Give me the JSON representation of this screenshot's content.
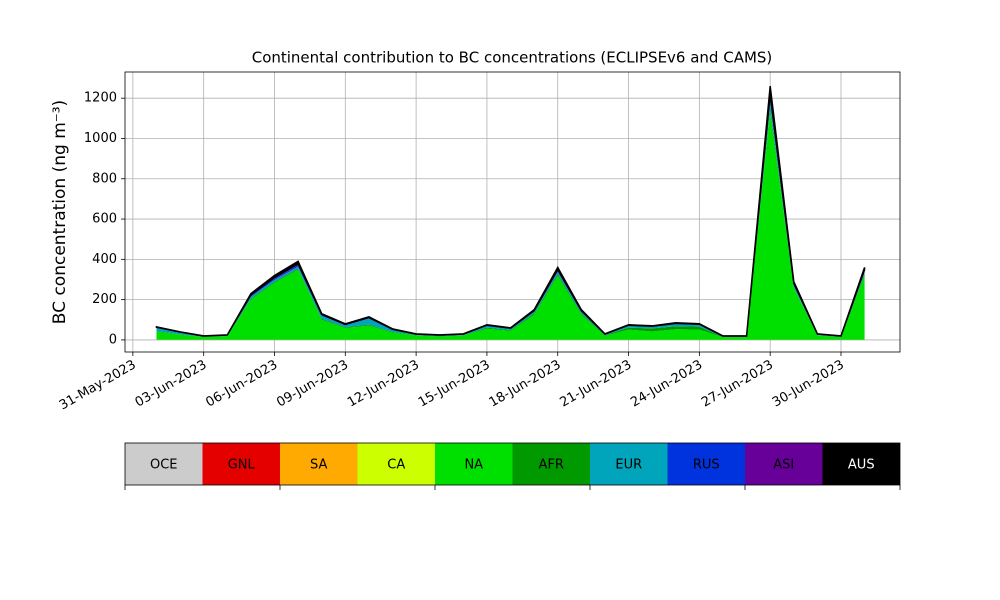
{
  "chart_data": {
    "type": "stacked_area",
    "title": "Continental contribution to BC concentrations (ECLIPSEv6 and CAMS)",
    "y_label": "BC concentration (ng m⁻³)",
    "x": [
      "2023-06-01",
      "2023-06-02",
      "2023-06-03",
      "2023-06-04",
      "2023-06-05",
      "2023-06-06",
      "2023-06-07",
      "2023-06-08",
      "2023-06-09",
      "2023-06-10",
      "2023-06-11",
      "2023-06-12",
      "2023-06-13",
      "2023-06-14",
      "2023-06-15",
      "2023-06-16",
      "2023-06-17",
      "2023-06-18",
      "2023-06-19",
      "2023-06-20",
      "2023-06-21",
      "2023-06-22",
      "2023-06-23",
      "2023-06-24",
      "2023-06-25",
      "2023-06-26",
      "2023-06-27",
      "2023-06-28",
      "2023-06-29",
      "2023-06-30",
      "2023-07-01"
    ],
    "xlim": [
      "2023-05-30T16:00:00Z",
      "2023-07-02T12:00:00Z"
    ],
    "xticks": [
      {
        "value": "2023-05-31",
        "label": "31-May-2023"
      },
      {
        "value": "2023-06-03",
        "label": "03-Jun-2023"
      },
      {
        "value": "2023-06-06",
        "label": "06-Jun-2023"
      },
      {
        "value": "2023-06-09",
        "label": "09-Jun-2023"
      },
      {
        "value": "2023-06-12",
        "label": "12-Jun-2023"
      },
      {
        "value": "2023-06-15",
        "label": "15-Jun-2023"
      },
      {
        "value": "2023-06-18",
        "label": "18-Jun-2023"
      },
      {
        "value": "2023-06-21",
        "label": "21-Jun-2023"
      },
      {
        "value": "2023-06-24",
        "label": "24-Jun-2023"
      },
      {
        "value": "2023-06-27",
        "label": "27-Jun-2023"
      },
      {
        "value": "2023-06-30",
        "label": "30-Jun-2023"
      }
    ],
    "ylim": [
      -60,
      1330
    ],
    "yticks": [
      0,
      200,
      400,
      600,
      800,
      1000,
      1200
    ],
    "grid": true,
    "series": [
      {
        "name": "OCE",
        "color": "#cccccc",
        "values": [
          0,
          0,
          0,
          0,
          0,
          0,
          0,
          0,
          0,
          0,
          0,
          0,
          0,
          0,
          0,
          0,
          0,
          0,
          0,
          0,
          0,
          0,
          0,
          0,
          0,
          0,
          0,
          0,
          0,
          0,
          0
        ]
      },
      {
        "name": "GNL",
        "color": "#e50000",
        "values": [
          0,
          0,
          0,
          0,
          0,
          0,
          0,
          0,
          0,
          0,
          0,
          0,
          0,
          0,
          0,
          0,
          0,
          0,
          0,
          0,
          0,
          0,
          0,
          0,
          0,
          0,
          0,
          0,
          0,
          0,
          0
        ]
      },
      {
        "name": "SA",
        "color": "#ffaa00",
        "values": [
          0,
          0,
          0,
          0,
          0,
          0,
          0,
          0,
          0,
          0,
          0,
          0,
          0,
          0,
          0,
          0,
          0,
          0,
          0,
          0,
          0,
          0,
          0,
          0,
          0,
          0,
          0,
          0,
          0,
          0,
          0
        ]
      },
      {
        "name": "CA",
        "color": "#ccff00",
        "values": [
          1,
          1,
          1,
          1,
          1,
          1,
          1,
          1,
          1,
          1,
          1,
          1,
          1,
          1,
          1,
          1,
          1,
          1,
          1,
          1,
          1,
          1,
          1,
          1,
          1,
          1,
          1,
          1,
          1,
          1,
          1
        ]
      },
      {
        "name": "NA",
        "color": "#00e000",
        "values": [
          40,
          25,
          13,
          18,
          199,
          282,
          348,
          99,
          58,
          70,
          36,
          21,
          16,
          21,
          55,
          44,
          124,
          318,
          124,
          19,
          50,
          41,
          52,
          50,
          12,
          12,
          1129,
          255,
          21,
          12,
          318
        ]
      },
      {
        "name": "AFR",
        "color": "#009900",
        "values": [
          3,
          2,
          1,
          1,
          5,
          5,
          5,
          5,
          4,
          5,
          3,
          2,
          2,
          2,
          5,
          4,
          6,
          8,
          6,
          3,
          10,
          15,
          15,
          15,
          2,
          2,
          20,
          5,
          2,
          2,
          8
        ]
      },
      {
        "name": "EUR",
        "color": "#00a5bb",
        "values": [
          15,
          8,
          2,
          2,
          10,
          10,
          10,
          15,
          10,
          30,
          10,
          3,
          3,
          3,
          8,
          6,
          8,
          10,
          8,
          4,
          8,
          8,
          10,
          8,
          2,
          2,
          30,
          10,
          3,
          2,
          10
        ]
      },
      {
        "name": "RUS",
        "color": "#0033dd",
        "values": [
          3,
          2,
          1,
          1,
          4,
          6,
          6,
          3,
          2,
          3,
          2,
          1,
          1,
          1,
          2,
          2,
          3,
          5,
          3,
          1,
          2,
          2,
          2,
          2,
          1,
          1,
          20,
          5,
          1,
          1,
          5
        ]
      },
      {
        "name": "ASI",
        "color": "#660099",
        "values": [
          1,
          1,
          1,
          1,
          4,
          6,
          8,
          3,
          2,
          2,
          1,
          1,
          1,
          1,
          2,
          1,
          3,
          7,
          3,
          1,
          2,
          1,
          2,
          2,
          1,
          1,
          20,
          5,
          1,
          1,
          7
        ]
      },
      {
        "name": "AUS",
        "color": "#000000",
        "values": [
          2,
          1,
          1,
          1,
          7,
          10,
          12,
          4,
          3,
          4,
          2,
          1,
          1,
          1,
          2,
          2,
          5,
          11,
          5,
          1,
          2,
          2,
          3,
          2,
          1,
          1,
          40,
          9,
          1,
          1,
          11
        ]
      }
    ]
  }
}
